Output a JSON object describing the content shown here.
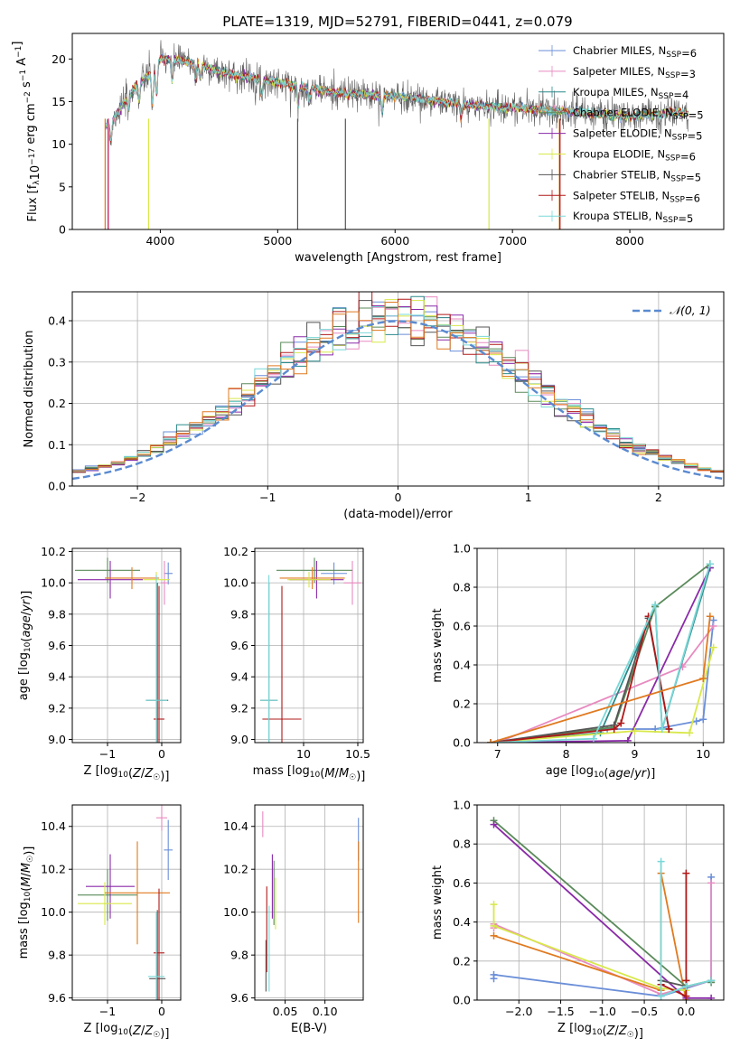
{
  "figure": {
    "title": "PLATE=1319, MJD=52791, FIBERID=0441, z=0.079"
  },
  "colors": [
    "#6a8ed8",
    "#e88ac0",
    "#2a8a8a",
    "#5a8a5a",
    "#8a2aa8",
    "#d8e84a",
    "#555555",
    "#b01818",
    "#7ad8d8",
    "#e07a20"
  ],
  "chart_data": [
    {
      "id": "spectrum",
      "type": "line",
      "xlabel": "wavelength [Angstrom, rest frame]",
      "ylabel": "Flux [f_λ10^-17 erg cm^-2 s^-1 A^-1]",
      "xlim": [
        3250,
        8800
      ],
      "ylim": [
        0,
        23
      ],
      "xticks": [
        4000,
        5000,
        6000,
        7000,
        8000
      ],
      "yticks": [
        0,
        5,
        10,
        15,
        20
      ],
      "grid": false,
      "legend_position": "top-right",
      "legend": [
        {
          "label": "Chabrier MILES, N_SSP=6",
          "color": "#6a8ed8"
        },
        {
          "label": "Salpeter MILES, N_SSP=3",
          "color": "#e88ac0"
        },
        {
          "label": "Kroupa MILES, N_SSP=4",
          "color": "#2a8a8a"
        },
        {
          "label": "Chabrier ELODIE, N_SSP=5",
          "color": "#5a8a5a"
        },
        {
          "label": "Salpeter ELODIE, N_SSP=5",
          "color": "#8a2aa8"
        },
        {
          "label": "Kroupa ELODIE, N_SSP=6",
          "color": "#d8e84a"
        },
        {
          "label": "Chabrier STELIB, N_SSP=5",
          "color": "#555555"
        },
        {
          "label": "Salpeter STELIB, N_SSP=6",
          "color": "#b01818"
        },
        {
          "label": "Kroupa STELIB, N_SSP=5",
          "color": "#7ad8d8"
        }
      ],
      "continuum": {
        "x": [
          3530,
          3600,
          3700,
          3800,
          3900,
          4000,
          4100,
          4300,
          4500,
          4700,
          4900,
          5100,
          5300,
          5500,
          5800,
          6100,
          6400,
          6700,
          7000,
          7300,
          7600,
          8000,
          8400,
          8500
        ],
        "y": [
          12,
          13,
          15,
          17,
          18,
          20,
          20,
          19.5,
          18.5,
          18,
          17.5,
          17,
          16.5,
          16,
          15.8,
          15.5,
          15,
          14.5,
          14.3,
          14,
          13.7,
          13.2,
          13.8,
          13.5
        ]
      }
    },
    {
      "id": "residual-hist",
      "type": "line",
      "xlabel": "(data-model)/error",
      "ylabel": "Normed distribution",
      "xlim": [
        -2.5,
        2.5
      ],
      "ylim": [
        0,
        0.47
      ],
      "xticks": [
        -2,
        -1,
        0,
        1,
        2
      ],
      "yticks": [
        0.0,
        0.1,
        0.2,
        0.3,
        0.4
      ],
      "grid": true,
      "legend_position": "top-right",
      "legend": [
        {
          "label": "𝒩(0, 1)",
          "color": "#5a8ad0"
        }
      ],
      "normal_curve": {
        "mean": 0,
        "sigma": 1
      },
      "bins": {
        "start": -2.5,
        "width": 0.1,
        "count": 50
      }
    },
    {
      "id": "age-vs-z",
      "type": "scatter",
      "xlabel": "Z [log10(Z/Z☉)]",
      "ylabel": "age  [log10(age/yr)]",
      "xlim": [
        -1.65,
        0.35
      ],
      "ylim": [
        8.98,
        10.22
      ],
      "xticks": [
        -1,
        0
      ],
      "yticks": [
        9.0,
        9.2,
        9.4,
        9.6,
        9.8,
        10.0,
        10.2
      ],
      "grid": true,
      "points": [
        {
          "x": 0.12,
          "y": 10.06,
          "xerr": 0.08,
          "yerr": 0.07,
          "c": 0
        },
        {
          "x": 0.05,
          "y": 10.0,
          "xerr": 0.07,
          "yerr": 0.14,
          "c": 1
        },
        {
          "x": -1.0,
          "y": 10.08,
          "xerr": 0.6,
          "yerr": 0.08,
          "c": 3
        },
        {
          "x": -0.95,
          "y": 10.02,
          "xerr": 0.6,
          "yerr": 0.12,
          "c": 4
        },
        {
          "x": -0.55,
          "y": 10.03,
          "xerr": 0.5,
          "yerr": 0.07,
          "c": 9
        },
        {
          "x": -0.1,
          "y": 10.02,
          "xerr": 0.25,
          "yerr": 0.05,
          "c": 5
        },
        {
          "x": -0.08,
          "y": 9.25,
          "xerr": 0.2,
          "yerr": 0.75,
          "c": 6
        },
        {
          "x": -0.05,
          "y": 9.13,
          "xerr": 0.1,
          "yerr": 0.85,
          "c": 7
        },
        {
          "x": -0.1,
          "y": 9.25,
          "xerr": 0.2,
          "yerr": 0.8,
          "c": 8
        }
      ]
    },
    {
      "id": "age-vs-mass",
      "type": "scatter",
      "xlabel": "mass [log10(M/M☉)]",
      "ylabel": "",
      "xlim": [
        9.55,
        10.55
      ],
      "ylim": [
        8.98,
        10.22
      ],
      "xticks": [
        10.0,
        10.5
      ],
      "yticks": [
        9.0,
        9.2,
        9.4,
        9.6,
        9.8,
        10.0,
        10.2
      ],
      "grid": true,
      "points": [
        {
          "x": 10.28,
          "y": 10.06,
          "xerr": 0.12,
          "yerr": 0.07,
          "c": 0
        },
        {
          "x": 10.45,
          "y": 10.0,
          "xerr": 0.08,
          "yerr": 0.14,
          "c": 1
        },
        {
          "x": 10.1,
          "y": 10.08,
          "xerr": 0.35,
          "yerr": 0.08,
          "c": 3
        },
        {
          "x": 10.12,
          "y": 10.02,
          "xerr": 0.25,
          "yerr": 0.12,
          "c": 4
        },
        {
          "x": 10.08,
          "y": 10.03,
          "xerr": 0.3,
          "yerr": 0.07,
          "c": 9
        },
        {
          "x": 10.05,
          "y": 10.02,
          "xerr": 0.2,
          "yerr": 0.05,
          "c": 5
        },
        {
          "x": 9.68,
          "y": 9.25,
          "xerr": 0.08,
          "yerr": 0.75,
          "c": 6
        },
        {
          "x": 9.8,
          "y": 9.13,
          "xerr": 0.18,
          "yerr": 0.85,
          "c": 7
        },
        {
          "x": 9.68,
          "y": 9.25,
          "xerr": 0.08,
          "yerr": 0.8,
          "c": 8
        }
      ]
    },
    {
      "id": "weight-vs-age",
      "type": "line",
      "xlabel": "age  [log10(age/yr)]",
      "ylabel": "mass weight",
      "xlim": [
        6.7,
        10.3
      ],
      "ylim": [
        0,
        1.0
      ],
      "xticks": [
        7,
        8,
        9,
        10
      ],
      "yticks": [
        0.0,
        0.2,
        0.4,
        0.6,
        0.8,
        1.0
      ],
      "grid": true,
      "series": [
        {
          "c": 0,
          "x": [
            6.9,
            8.6,
            9.3,
            9.9,
            10.0,
            10.15
          ],
          "y": [
            0.0,
            0.07,
            0.07,
            0.11,
            0.12,
            0.63
          ]
        },
        {
          "c": 1,
          "x": [
            7.0,
            9.7,
            10.15
          ],
          "y": [
            0.0,
            0.39,
            0.6
          ]
        },
        {
          "c": 2,
          "x": [
            6.9,
            8.5,
            9.3,
            9.4,
            10.1
          ],
          "y": [
            0.0,
            0.05,
            0.7,
            0.07,
            0.9
          ]
        },
        {
          "c": 3,
          "x": [
            6.9,
            8.7,
            9.3,
            10.1
          ],
          "y": [
            0.0,
            0.08,
            0.7,
            0.92
          ]
        },
        {
          "c": 4,
          "x": [
            6.9,
            8.9,
            10.1
          ],
          "y": [
            0.0,
            0.01,
            0.9
          ]
        },
        {
          "c": 5,
          "x": [
            6.9,
            9.0,
            9.8,
            10.15
          ],
          "y": [
            0.0,
            0.06,
            0.05,
            0.49
          ]
        },
        {
          "c": 6,
          "x": [
            6.9,
            8.7,
            9.2,
            9.5
          ],
          "y": [
            0.0,
            0.09,
            0.64,
            0.07
          ]
        },
        {
          "c": 7,
          "x": [
            6.9,
            8.7,
            8.8,
            9.2,
            9.5
          ],
          "y": [
            0.0,
            0.07,
            0.1,
            0.65,
            0.07
          ]
        },
        {
          "c": 8,
          "x": [
            6.9,
            8.4,
            9.3,
            9.4,
            10.1
          ],
          "y": [
            0.0,
            0.02,
            0.71,
            0.07,
            0.92
          ]
        },
        {
          "c": 9,
          "x": [
            6.9,
            10.0,
            10.1
          ],
          "y": [
            0.0,
            0.33,
            0.65
          ]
        }
      ]
    },
    {
      "id": "mass-vs-z",
      "type": "scatter",
      "xlabel": "Z [log10(Z/Z☉)]",
      "ylabel": "mass [log10(M/M☉)]",
      "xlim": [
        -1.65,
        0.35
      ],
      "ylim": [
        9.59,
        10.5
      ],
      "xticks": [
        -1,
        0
      ],
      "yticks": [
        9.6,
        9.8,
        10.0,
        10.2,
        10.4
      ],
      "grid": true,
      "points": [
        {
          "x": 0.12,
          "y": 10.29,
          "xerr": 0.08,
          "yerr": 0.14,
          "c": 0
        },
        {
          "x": 0.0,
          "y": 10.44,
          "xerr": 0.1,
          "yerr": 0.06,
          "c": 1
        },
        {
          "x": -1.0,
          "y": 10.08,
          "xerr": 0.55,
          "yerr": 0.12,
          "c": 3
        },
        {
          "x": -0.95,
          "y": 10.12,
          "xerr": 0.45,
          "yerr": 0.15,
          "c": 4
        },
        {
          "x": -1.05,
          "y": 10.04,
          "xerr": 0.5,
          "yerr": 0.1,
          "c": 5
        },
        {
          "x": -0.45,
          "y": 10.09,
          "xerr": 0.6,
          "yerr": 0.24,
          "c": 9
        },
        {
          "x": -0.08,
          "y": 9.69,
          "xerr": 0.15,
          "yerr": 0.32,
          "c": 6
        },
        {
          "x": -0.05,
          "y": 9.81,
          "xerr": 0.1,
          "yerr": 0.3,
          "c": 7
        },
        {
          "x": -0.1,
          "y": 9.7,
          "xerr": 0.15,
          "yerr": 0.3,
          "c": 8
        }
      ]
    },
    {
      "id": "mass-vs-ebv",
      "type": "scatter",
      "xlabel": "E(B-V)",
      "ylabel": "",
      "xlim": [
        0.012,
        0.148
      ],
      "ylim": [
        9.59,
        10.5
      ],
      "xticks": [
        0.05,
        0.1
      ],
      "xticklabels": [
        "0.05",
        "0.10"
      ],
      "yticks": [
        9.6,
        9.8,
        10.0,
        10.2,
        10.4
      ],
      "grid": true,
      "points": [
        {
          "x": 0.142,
          "y": 10.34,
          "xerr": 0,
          "yerr": 0.1,
          "c": 0
        },
        {
          "x": 0.022,
          "y": 10.41,
          "xerr": 0,
          "yerr": 0.06,
          "c": 1
        },
        {
          "x": 0.036,
          "y": 10.09,
          "xerr": 0,
          "yerr": 0.15,
          "c": 3
        },
        {
          "x": 0.034,
          "y": 10.12,
          "xerr": 0,
          "yerr": 0.15,
          "c": 4
        },
        {
          "x": 0.038,
          "y": 10.04,
          "xerr": 0,
          "yerr": 0.12,
          "c": 5
        },
        {
          "x": 0.142,
          "y": 10.14,
          "xerr": 0,
          "yerr": 0.19,
          "c": 9
        },
        {
          "x": 0.026,
          "y": 9.75,
          "xerr": 0,
          "yerr": 0.12,
          "c": 6
        },
        {
          "x": 0.027,
          "y": 9.92,
          "xerr": 0,
          "yerr": 0.2,
          "c": 7
        },
        {
          "x": 0.03,
          "y": 9.83,
          "xerr": 0,
          "yerr": 0.2,
          "c": 8
        }
      ]
    },
    {
      "id": "weight-vs-z",
      "type": "line",
      "xlabel": "Z [log10(Z/Z☉)]",
      "ylabel": "mass weight",
      "xlim": [
        -2.5,
        0.45
      ],
      "ylim": [
        0,
        1.0
      ],
      "xticks": [
        -2.0,
        -1.5,
        -1.0,
        -0.5,
        0.0
      ],
      "xticklabels": [
        "−2.0",
        "−1.5",
        "−1.0",
        "−0.5",
        "0.0"
      ],
      "yticks": [
        0.0,
        0.2,
        0.4,
        0.6,
        0.8,
        1.0
      ],
      "grid": true,
      "series": [
        {
          "c": 0,
          "x": [
            -2.3,
            -2.3,
            -0.3,
            0.3,
            0.3
          ],
          "y": [
            0.11,
            0.13,
            0.02,
            0.1,
            0.63
          ]
        },
        {
          "c": 1,
          "x": [
            -2.3,
            -2.3,
            -0.3,
            0.3,
            0.3
          ],
          "y": [
            0.37,
            0.39,
            0.03,
            0.1,
            0.6
          ]
        },
        {
          "c": 9,
          "x": [
            -2.3,
            -0.3,
            -0.3,
            0.0
          ],
          "y": [
            0.33,
            0.05,
            0.65,
            0.0
          ]
        },
        {
          "c": 5,
          "x": [
            -2.3,
            -2.3,
            -0.3,
            0.0
          ],
          "y": [
            0.49,
            0.38,
            0.06,
            0.05
          ]
        },
        {
          "c": 3,
          "x": [
            -2.3,
            0.0,
            0.3,
            0.3
          ],
          "y": [
            0.92,
            0.07,
            0.1,
            0.09
          ]
        },
        {
          "c": 4,
          "x": [
            -2.3,
            0.0,
            0.3
          ],
          "y": [
            0.9,
            0.01,
            0.01
          ]
        },
        {
          "c": 6,
          "x": [
            -0.3,
            0.0,
            0.0
          ],
          "y": [
            0.1,
            0.07,
            0.1
          ]
        },
        {
          "c": 7,
          "x": [
            -0.3,
            0.0,
            0.0,
            0.0
          ],
          "y": [
            0.08,
            0.02,
            0.65,
            0.1
          ]
        },
        {
          "c": 8,
          "x": [
            -0.3,
            -0.3,
            0.0,
            0.3
          ],
          "y": [
            0.71,
            0.02,
            0.07,
            0.1
          ]
        }
      ]
    }
  ]
}
